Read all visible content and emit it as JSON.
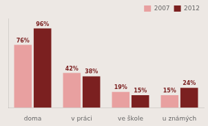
{
  "chart_data": {
    "type": "bar",
    "categories": [
      "doma",
      "v práci",
      "ve škole",
      "u známých"
    ],
    "series": [
      {
        "name": "2007",
        "color": "#e8a0a0",
        "values": [
          76,
          42,
          19,
          15
        ],
        "value_labels": [
          "76%",
          "42%",
          "19%",
          "15%"
        ]
      },
      {
        "name": "2012",
        "color": "#7b2020",
        "values": [
          96,
          38,
          15,
          24
        ],
        "value_labels": [
          "96%",
          "38%",
          "15%",
          "24%"
        ]
      }
    ],
    "ylim": [
      0,
      108
    ],
    "grid": false,
    "legend": "upper right",
    "data_labels": true,
    "tick_labels": "x"
  }
}
